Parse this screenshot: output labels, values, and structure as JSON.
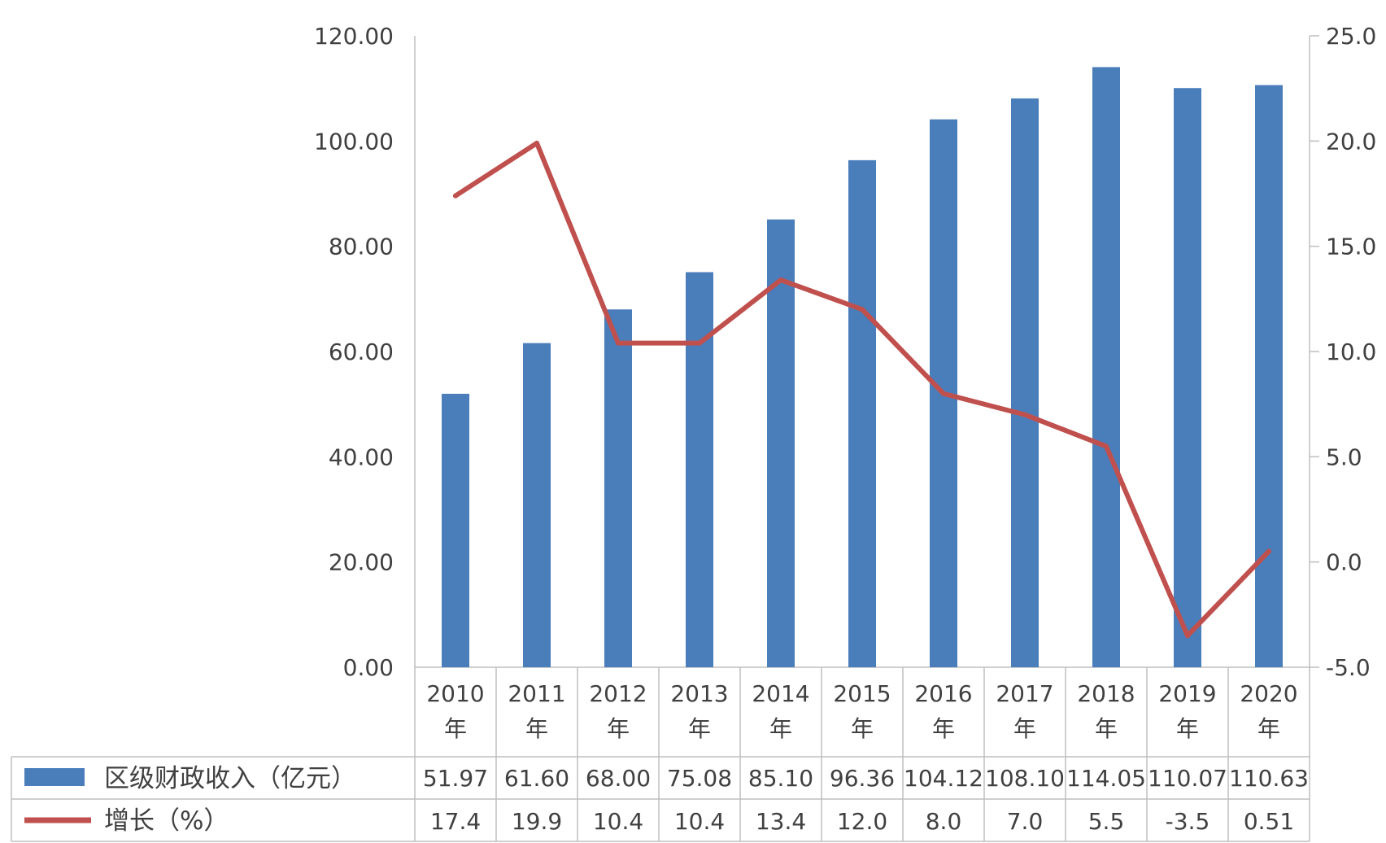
{
  "chart_data": {
    "type": "bar",
    "categories": [
      "2010年",
      "2011年",
      "2012年",
      "2013年",
      "2014年",
      "2015年",
      "2016年",
      "2017年",
      "2018年",
      "2019年",
      "2020年"
    ],
    "category_years": [
      "2010",
      "2011",
      "2012",
      "2013",
      "2014",
      "2015",
      "2016",
      "2017",
      "2018",
      "2019",
      "2020"
    ],
    "category_suffix": "年",
    "series": [
      {
        "name": "区级财政收入（亿元）",
        "type": "bar",
        "axis": "left",
        "color": "#4a7ebb",
        "values": [
          51.97,
          61.6,
          68.0,
          75.08,
          85.1,
          96.36,
          104.12,
          108.1,
          114.05,
          110.07,
          110.63
        ],
        "labels": [
          "51.97",
          "61.60",
          "68.00",
          "75.08",
          "85.10",
          "96.36",
          "104.12",
          "108.10",
          "114.05",
          "110.07",
          "110.63"
        ]
      },
      {
        "name": "增长（%）",
        "type": "line",
        "axis": "right",
        "color": "#c0504d",
        "values": [
          17.4,
          19.9,
          10.4,
          10.4,
          13.4,
          12.0,
          8.0,
          7.0,
          5.5,
          -3.5,
          0.51
        ],
        "labels": [
          "17.4",
          "19.9",
          "10.4",
          "10.4",
          "13.4",
          "12.0",
          "8.0",
          "7.0",
          "5.5",
          "-3.5",
          "0.51"
        ]
      }
    ],
    "y_left": {
      "ylim": [
        0,
        120
      ],
      "ticks": [
        "0.00",
        "20.00",
        "40.00",
        "60.00",
        "80.00",
        "100.00",
        "120.00"
      ]
    },
    "y_right": {
      "ylim": [
        -5,
        25
      ],
      "ticks": [
        "-5.0",
        "0.0",
        "5.0",
        "10.0",
        "15.0",
        "20.0",
        "25.0"
      ]
    },
    "title": "",
    "xlabel": "",
    "ylabel": "",
    "legend": "data-table-left",
    "grid": true
  }
}
